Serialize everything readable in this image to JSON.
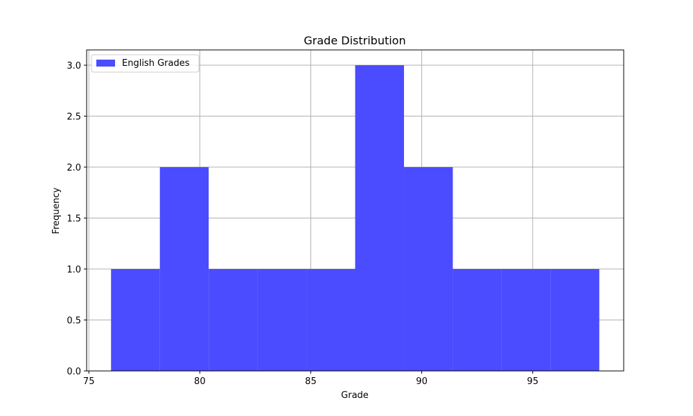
{
  "chart_data": {
    "type": "bar",
    "title": "Grade Distribution",
    "xlabel": "Grade",
    "ylabel": "Frequency",
    "xlim": [
      74.9,
      99.1
    ],
    "ylim": [
      0,
      3.15
    ],
    "xticks": [
      75,
      80,
      85,
      90,
      95
    ],
    "yticks": [
      0.0,
      0.5,
      1.0,
      1.5,
      2.0,
      2.5,
      3.0
    ],
    "xtick_labels": [
      "75",
      "80",
      "85",
      "90",
      "95"
    ],
    "ytick_labels": [
      "0.0",
      "0.5",
      "1.0",
      "1.5",
      "2.0",
      "2.5",
      "3.0"
    ],
    "grid": true,
    "legend_position": "top-left",
    "series": [
      {
        "name": "English Grades",
        "color": "#4b4bff",
        "bin_edges": [
          76.0,
          78.2,
          80.4,
          82.6,
          84.8,
          87.0,
          89.2,
          91.4,
          93.6,
          95.8,
          98.0
        ],
        "values": [
          1,
          2,
          1,
          1,
          1,
          3,
          2,
          1,
          1,
          1
        ]
      }
    ]
  }
}
